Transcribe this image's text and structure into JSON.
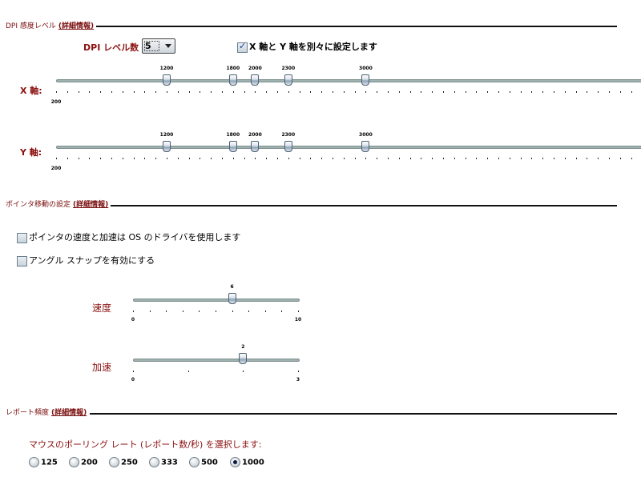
{
  "dpi_section": {
    "title": "DPI 感度レベル",
    "details_link": "(詳細情報)",
    "level_count_label": "DPI レベル数",
    "level_count_value": "5",
    "separate_axes_label": "X 軸と Y 軸を別々に設定します",
    "separate_axes_checked": true,
    "x_axis": {
      "label": "X 軸:",
      "min": 200,
      "min_label": "200",
      "values": [
        1200,
        1800,
        2000,
        2300,
        3000
      ],
      "value_labels": [
        "1200",
        "1800",
        "2000",
        "2300",
        "3000"
      ]
    },
    "y_axis": {
      "label": "Y 軸:",
      "min": 200,
      "min_label": "200",
      "values": [
        1200,
        1800,
        2000,
        2300,
        3000
      ],
      "value_labels": [
        "1200",
        "1800",
        "2000",
        "2300",
        "3000"
      ]
    }
  },
  "pointer_section": {
    "title": "ポインタ移動の設定",
    "details_link": "(詳細情報)",
    "use_os_driver_label": "ポインタの速度と加速は OS のドライバを使用します",
    "use_os_driver_checked": false,
    "angle_snap_label": "アングル スナップを有効にする",
    "angle_snap_checked": false,
    "speed": {
      "label": "速度",
      "min": 0,
      "max": 10,
      "value": 6,
      "min_label": "0",
      "max_label": "10",
      "value_label": "6"
    },
    "acceleration": {
      "label": "加速",
      "min": 0,
      "max": 3,
      "value": 2,
      "min_label": "0",
      "max_label": "3",
      "value_label": "2"
    }
  },
  "report_section": {
    "title": "レポート頻度",
    "details_link": "(詳細情報)",
    "prompt": "マウスのポーリング レート (レポート数/秒) を選択します:",
    "options": [
      "125",
      "200",
      "250",
      "333",
      "500",
      "1000"
    ],
    "selected": "1000"
  }
}
